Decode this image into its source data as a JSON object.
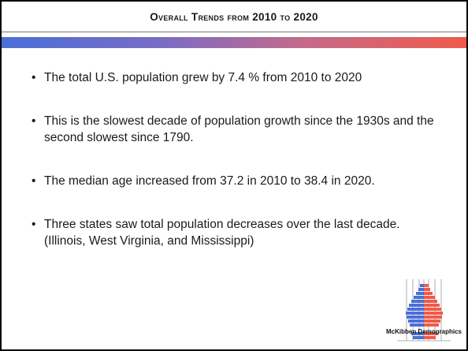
{
  "slide": {
    "title": "Overall Trends from 2010 to 2020",
    "bullets": [
      "The total U.S. population grew by 7.4 % from 2010 to 2020",
      "This is the slowest decade of population growth since the 1930s and the second slowest since 1790.",
      "The median age increased from 37.2 in 2010 to 38.4 in 2020.",
      "Three states saw total population decreases over the last decade. (Illinois, West Virginia, and Mississippi)"
    ],
    "logo_text": "McKibben Demographics"
  },
  "colors": {
    "border": "#000000",
    "gradient_start": "#4a6fd8",
    "gradient_end": "#f05a4a",
    "pyramid_left": "#4a6fd8",
    "pyramid_right": "#f05a4a"
  }
}
